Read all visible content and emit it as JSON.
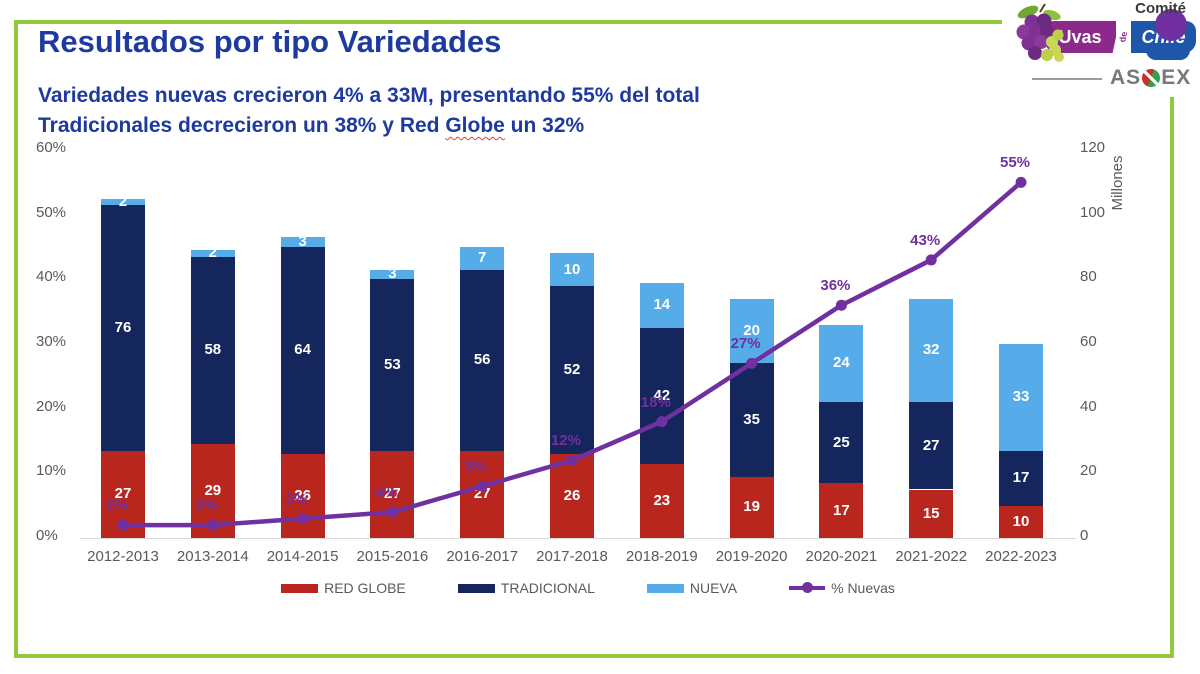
{
  "slide": {
    "title": "Resultados por tipo Variedades",
    "subtitle_line1": "Variedades nuevas crecieron 4% a 33M, presentando 55% del total",
    "subtitle_line2_prefix": "Tradicionales decrecieron un 38% y Red ",
    "subtitle_line2_word": "Globe",
    "subtitle_line2_suffix": " un 32%",
    "title_color": "#1E3A9F",
    "border_color": "#92C83E"
  },
  "logo": {
    "comite": "Comité",
    "uvas": "Uvas",
    "de": "de",
    "chile": "Chile",
    "asoex_prefix": "AS",
    "asoex_suffix": "EX"
  },
  "chart_data": {
    "type": "bar",
    "subtype": "stacked-bars-with-percent-line",
    "categories": [
      "2012-2013",
      "2013-2014",
      "2014-2015",
      "2015-2016",
      "2016-2017",
      "2017-2018",
      "2018-2019",
      "2019-2020",
      "2020-2021",
      "2021-2022",
      "2022-2023"
    ],
    "series": [
      {
        "name": "RED GLOBE",
        "color": "#B9261E",
        "axis": "right-millones",
        "values": [
          27,
          29,
          26,
          27,
          27,
          26,
          23,
          19,
          17,
          15,
          10
        ]
      },
      {
        "name": "TRADICIONAL",
        "color": "#15265C",
        "axis": "right-millones",
        "values": [
          76,
          58,
          64,
          53,
          56,
          52,
          42,
          35,
          25,
          27,
          17
        ]
      },
      {
        "name": "NUEVA",
        "color": "#55ACE8",
        "axis": "right-millones",
        "values": [
          2,
          2,
          3,
          3,
          7,
          10,
          14,
          20,
          24,
          32,
          33
        ]
      }
    ],
    "line": {
      "name": "% Nuevas",
      "color": "#7030A0",
      "axis": "left-percent",
      "values": [
        2,
        2,
        3,
        4,
        8,
        12,
        18,
        27,
        36,
        43,
        55
      ],
      "labels": [
        "2%",
        "2%",
        "3%",
        "4%",
        "8%",
        "12%",
        "18%",
        "27%",
        "36%",
        "43%",
        "55%"
      ]
    },
    "left_axis": {
      "max": 60,
      "ticks": [
        "0%",
        "10%",
        "20%",
        "30%",
        "40%",
        "50%",
        "60%"
      ]
    },
    "right_axis": {
      "max": 120,
      "ticks": [
        "0",
        "20",
        "40",
        "60",
        "80",
        "100",
        "120"
      ],
      "label": "Millones"
    },
    "axis_text_color": "#595959",
    "grid": "off",
    "legend_position": "bottom"
  }
}
